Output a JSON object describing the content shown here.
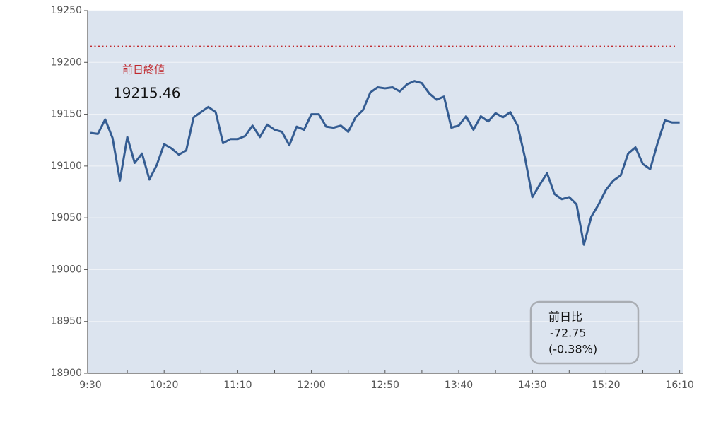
{
  "chart_data": {
    "type": "line",
    "categories": [
      "9:30",
      null,
      null,
      null,
      null,
      null,
      null,
      null,
      null,
      null,
      "10:20",
      null,
      null,
      null,
      null,
      null,
      null,
      null,
      null,
      null,
      "11:10",
      null,
      null,
      null,
      null,
      null,
      null,
      null,
      null,
      null,
      "12:00",
      null,
      null,
      null,
      null,
      null,
      null,
      null,
      null,
      null,
      "12:50",
      null,
      null,
      null,
      null,
      null,
      null,
      null,
      null,
      null,
      "13:40",
      null,
      null,
      null,
      null,
      null,
      null,
      null,
      null,
      null,
      "14:30",
      null,
      null,
      null,
      null,
      null,
      null,
      null,
      null,
      null,
      "15:20",
      null,
      null,
      null,
      null,
      null,
      null,
      null,
      null,
      null,
      "16:10"
    ],
    "series": [
      {
        "color": "#345c92",
        "values": [
          19132,
          19131,
          19145,
          19127,
          19086,
          19128,
          19103,
          19112,
          19087,
          19101,
          19121,
          19117,
          19111,
          19115,
          19147,
          19152,
          19157,
          19152,
          19122,
          19126,
          19126,
          19129,
          19139,
          19128,
          19140,
          19135,
          19133,
          19120,
          19138,
          19135,
          19150,
          19150,
          19138,
          19137,
          19139,
          19133,
          19147,
          19154,
          19171,
          19176,
          19175,
          19176,
          19172,
          19179,
          19182,
          19180,
          19170,
          19164,
          19167,
          19137,
          19139,
          19148,
          19135,
          19148,
          19143,
          19151,
          19147,
          19152,
          19139,
          19108,
          19070,
          19082,
          19093,
          19073,
          19068,
          19070,
          19063,
          19024,
          19051,
          19063,
          19077,
          19086,
          19091,
          19112,
          19118,
          19102,
          19097,
          19122,
          19144,
          19142,
          19142
        ]
      }
    ],
    "ylim": [
      18900,
      19250
    ],
    "yticks": [
      18900,
      18950,
      19000,
      19050,
      19100,
      19150,
      19200,
      19250
    ],
    "grid": true,
    "reference_line": {
      "label": "前日終値",
      "value": 19215.46,
      "color": "#c0282d"
    },
    "change_box": {
      "title": "前日比",
      "change": -72.75,
      "change_percent": {
        "value": -0.38,
        "label": "(-0.38%)"
      }
    }
  }
}
